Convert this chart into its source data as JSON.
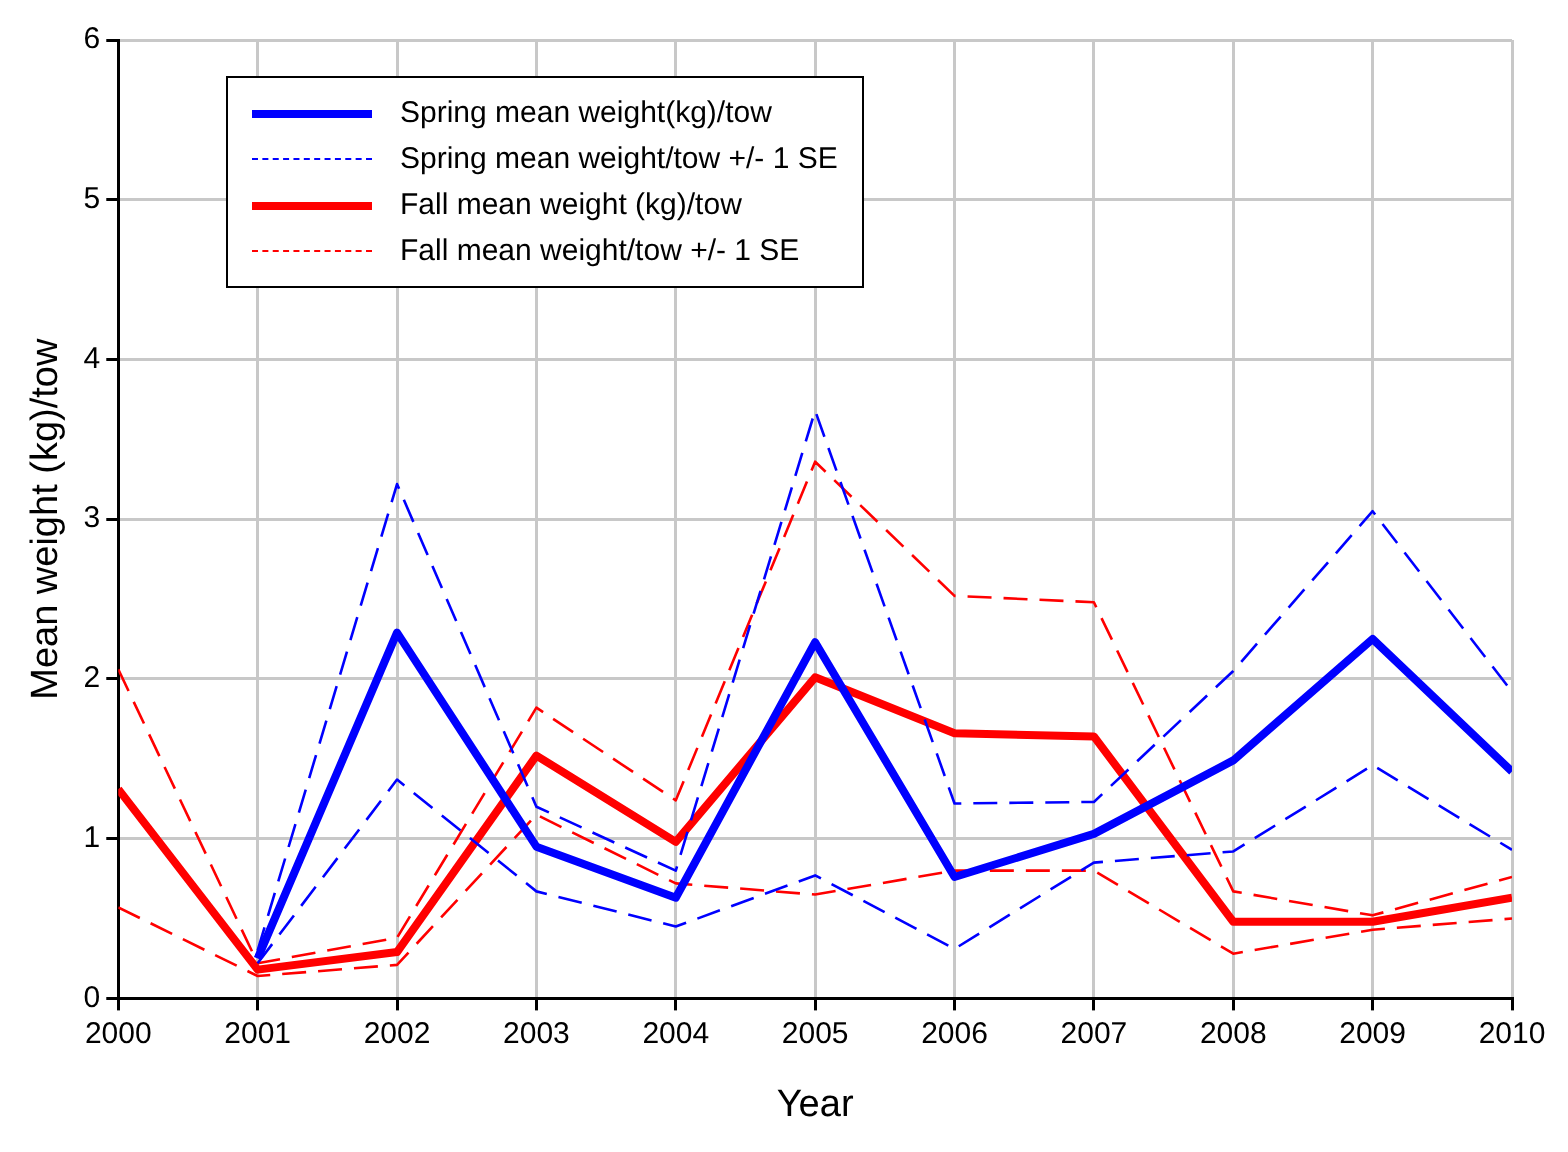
{
  "chart_data": {
    "type": "line",
    "xlabel": "Year",
    "ylabel": "Mean weight (kg)/tow",
    "x": [
      2000,
      2001,
      2002,
      2003,
      2004,
      2005,
      2006,
      2007,
      2008,
      2009,
      2010
    ],
    "xlim": [
      2000,
      2010
    ],
    "xticks": [
      2000,
      2001,
      2002,
      2003,
      2004,
      2005,
      2006,
      2007,
      2008,
      2009,
      2010
    ],
    "ylim": [
      0,
      6
    ],
    "yticks": [
      0,
      1,
      2,
      3,
      4,
      5,
      6
    ],
    "grid": true,
    "legend": "top left",
    "marker": "none",
    "series": [
      {
        "name": "Spring mean weight(kg)/tow",
        "color": "#0000ff",
        "line_style": "solid",
        "values": [
          null,
          0.25,
          2.29,
          0.95,
          0.63,
          2.23,
          0.76,
          1.03,
          1.49,
          2.25,
          1.42
        ]
      },
      {
        "name": "Spring mean weight/tow +/- 1 SE",
        "color": "#0000ff",
        "line_style": "dashed",
        "values": [
          null,
          0.3,
          3.22,
          1.2,
          0.8,
          3.68,
          1.22,
          1.23,
          2.05,
          3.05,
          1.92
        ]
      },
      {
        "color": "#0000ff",
        "line_style": "dashed",
        "values": [
          null,
          0.22,
          1.37,
          0.67,
          0.45,
          0.77,
          0.31,
          0.85,
          0.92,
          1.46,
          0.93
        ]
      },
      {
        "name": "Fall mean weight (kg)/tow",
        "color": "#ff0000",
        "line_style": "solid",
        "values": [
          1.31,
          0.18,
          0.29,
          1.52,
          0.98,
          2.01,
          1.66,
          1.64,
          0.48,
          0.48,
          0.63
        ]
      },
      {
        "name": "Fall mean weight/tow +/- 1 SE",
        "color": "#ff0000",
        "line_style": "dashed",
        "values": [
          2.06,
          0.22,
          0.38,
          1.82,
          1.24,
          3.36,
          2.52,
          2.48,
          0.67,
          0.52,
          0.76
        ]
      },
      {
        "color": "#ff0000",
        "line_style": "dashed",
        "values": [
          0.57,
          0.14,
          0.21,
          1.15,
          0.72,
          0.65,
          0.8,
          0.8,
          0.28,
          0.43,
          0.5
        ]
      }
    ]
  }
}
